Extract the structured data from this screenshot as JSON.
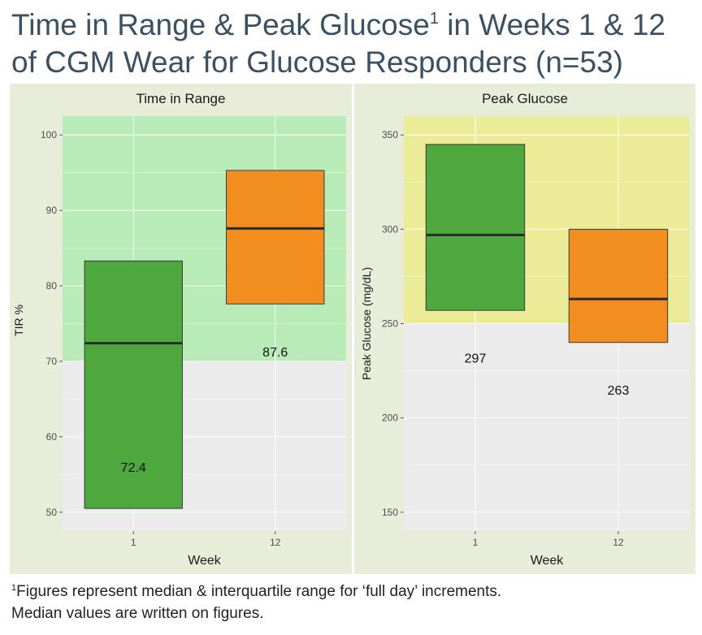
{
  "title": {
    "line1_pre": "Time in Range & Peak Glucose",
    "line1_sup": "1",
    "line1_post": " in Weeks 1 & 12",
    "line2": "of CGM Wear for Glucose Responders (n=53)"
  },
  "footnote": {
    "sup": "1",
    "line1": "Figures represent median & interquartile range for ‘full day’ increments.",
    "line2": "Median values are written on figures."
  },
  "colors": {
    "week1": "#4ea83e",
    "week12": "#f28e1f",
    "tir_band": "#b8ebb8",
    "peak_band": "#ebeb98",
    "panel_bg": "#ebebeb",
    "strip_bg": "#e7edd9"
  },
  "chart_data": [
    {
      "type": "box",
      "panel_title": "Time in Range",
      "xlabel": "Week",
      "ylabel": "TIR %",
      "categories": [
        "1",
        "12"
      ],
      "ylim": [
        47.5,
        102.5
      ],
      "yticks": [
        50,
        60,
        70,
        80,
        90,
        100
      ],
      "target_band": [
        70,
        102.5
      ],
      "boxes": [
        {
          "week": "1",
          "q1": 50.5,
          "median": 72.4,
          "q3": 83.3,
          "label": "72.4",
          "label_y": 56.0
        },
        {
          "week": "12",
          "q1": 77.6,
          "median": 87.6,
          "q3": 95.3,
          "label": "87.6",
          "label_y": 71.3
        }
      ]
    },
    {
      "type": "box",
      "panel_title": "Peak Glucose",
      "xlabel": "Week",
      "ylabel": "Peak Glucose (mg/dL)",
      "categories": [
        "1",
        "12"
      ],
      "ylim": [
        140,
        360
      ],
      "yticks": [
        150,
        200,
        250,
        300,
        350
      ],
      "target_band": [
        250,
        360
      ],
      "boxes": [
        {
          "week": "1",
          "q1": 257,
          "median": 297,
          "q3": 345,
          "label": "297",
          "label_y": 232
        },
        {
          "week": "12",
          "q1": 240,
          "median": 263,
          "q3": 300,
          "label": "263",
          "label_y": 215
        }
      ]
    }
  ]
}
